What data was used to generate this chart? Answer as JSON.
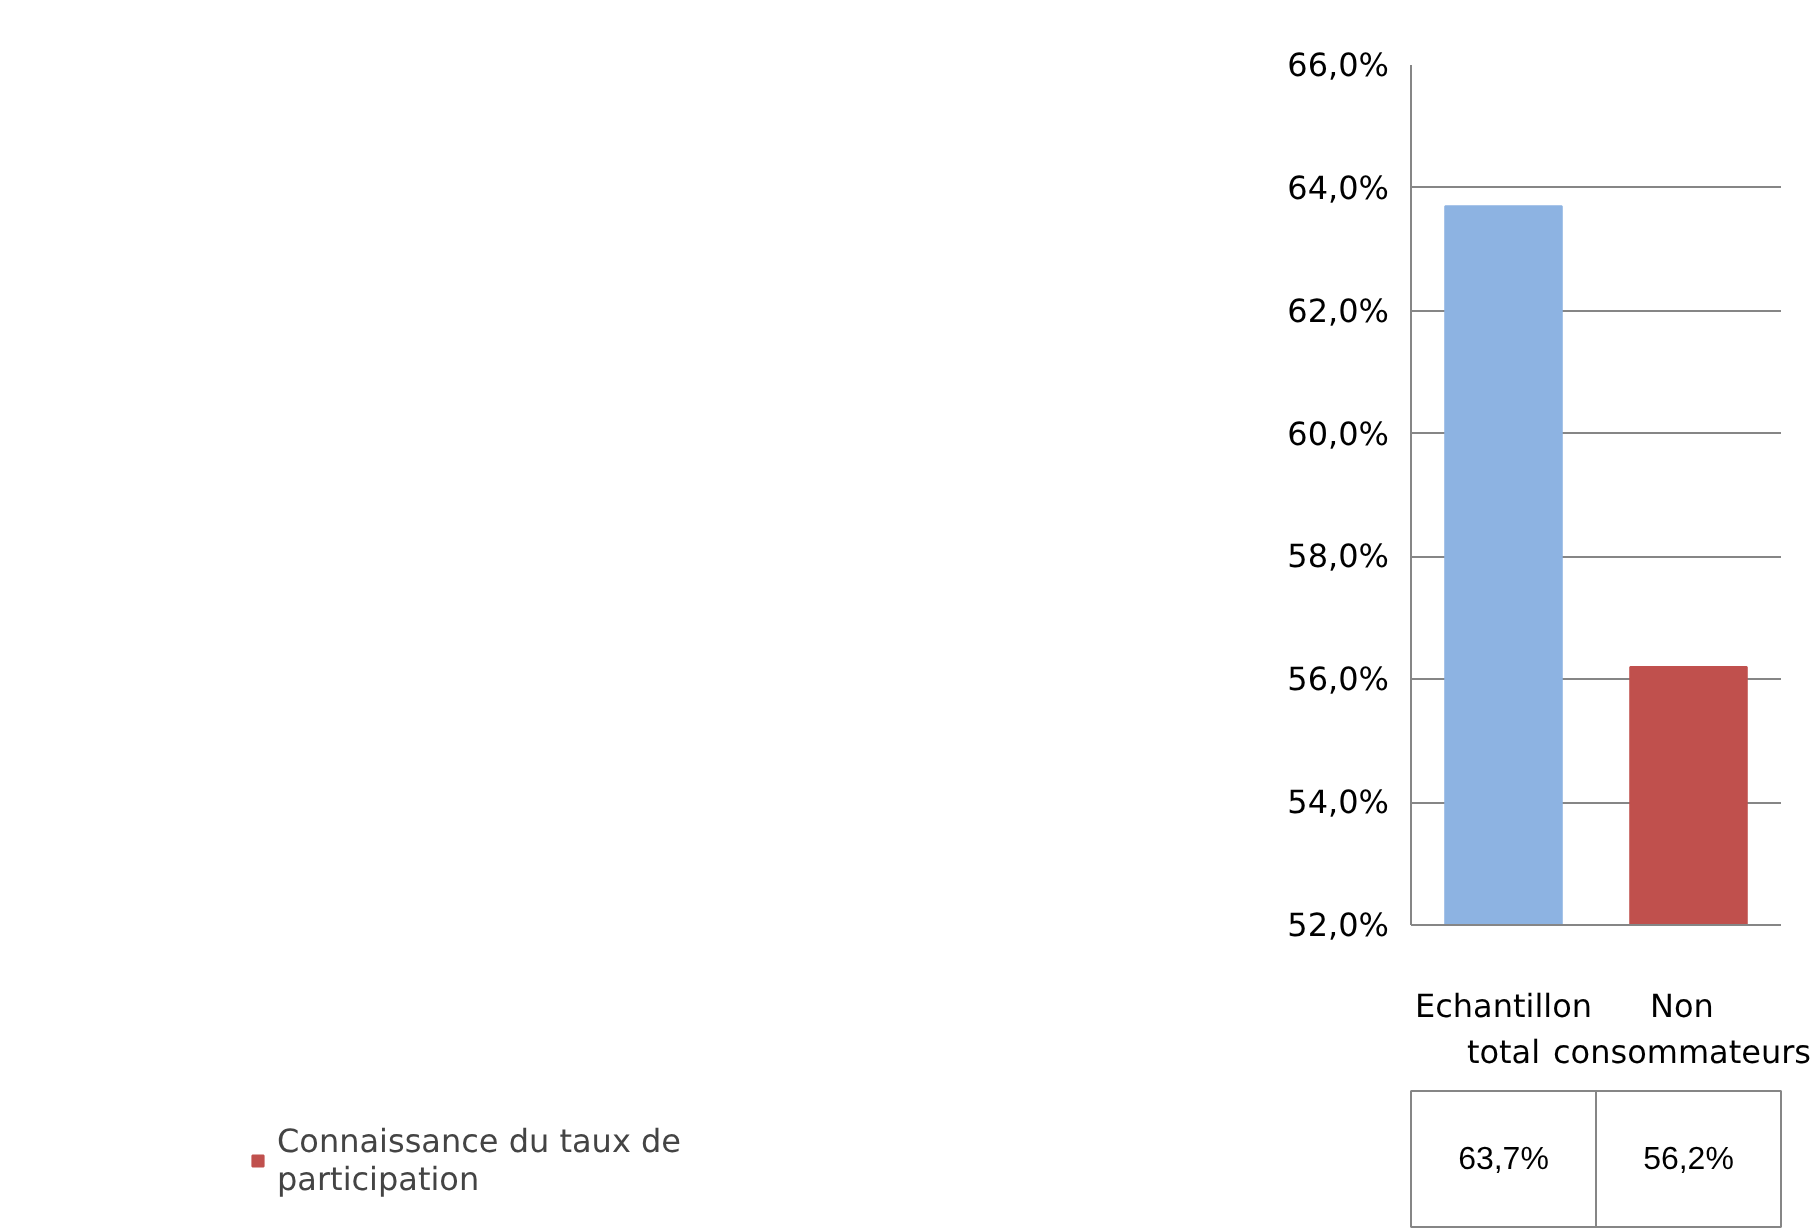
{
  "chart_data": {
    "type": "bar",
    "categories": [
      "Echantillon total",
      "Non consommateurs"
    ],
    "series": [
      {
        "name": "Connaissance du taux de participation",
        "color": "#c0504d",
        "colors": [
          "#8db3e2",
          "#c0504d"
        ],
        "values": [
          63.7,
          56.2
        ],
        "value_labels": [
          "63,7%",
          "56,2%"
        ]
      }
    ],
    "ylim": [
      52,
      66
    ],
    "yticks": [
      {
        "value": 52,
        "label": "52,0%"
      },
      {
        "value": 54,
        "label": "54,0%"
      },
      {
        "value": 56,
        "label": "56,0%"
      },
      {
        "value": 58,
        "label": "58,0%"
      },
      {
        "value": 60,
        "label": "60,0%"
      },
      {
        "value": 62,
        "label": "62,0%"
      },
      {
        "value": 64,
        "label": "64,0%"
      },
      {
        "value": 66,
        "label": "66,0%"
      }
    ],
    "grid": "y",
    "legend": "bottom left"
  }
}
